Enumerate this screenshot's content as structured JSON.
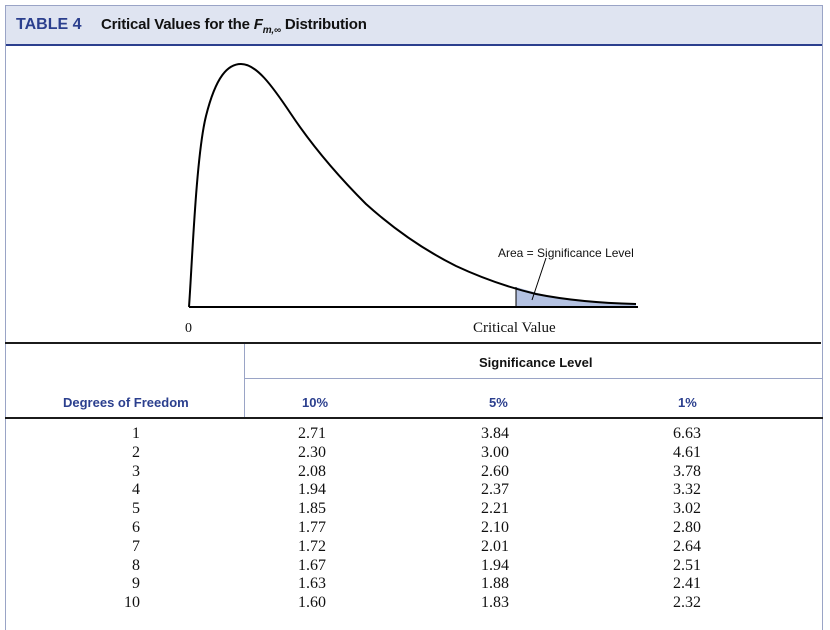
{
  "header": {
    "table_label": "TABLE 4",
    "title_prefix": "Critical Values for the ",
    "title_symbol": "F",
    "title_subscript": "m,∞",
    "title_suffix": " Distribution"
  },
  "figure": {
    "zero_label": "0",
    "critical_value_label": "Critical Value",
    "area_label": "Area = Significance Level"
  },
  "table": {
    "row_header": "Degrees of Freedom",
    "group_header": "Significance Level",
    "columns": [
      "10%",
      "5%",
      "1%"
    ],
    "rows": [
      {
        "df": "1",
        "v10": "2.71",
        "v5": "3.84",
        "v1": "6.63"
      },
      {
        "df": "2",
        "v10": "2.30",
        "v5": "3.00",
        "v1": "4.61"
      },
      {
        "df": "3",
        "v10": "2.08",
        "v5": "2.60",
        "v1": "3.78"
      },
      {
        "df": "4",
        "v10": "1.94",
        "v5": "2.37",
        "v1": "3.32"
      },
      {
        "df": "5",
        "v10": "1.85",
        "v5": "2.21",
        "v1": "3.02"
      },
      {
        "df": "6",
        "v10": "1.77",
        "v5": "2.10",
        "v1": "2.80"
      },
      {
        "df": "7",
        "v10": "1.72",
        "v5": "2.01",
        "v1": "2.64"
      },
      {
        "df": "8",
        "v10": "1.67",
        "v5": "1.94",
        "v1": "2.51"
      },
      {
        "df": "9",
        "v10": "1.63",
        "v5": "1.88",
        "v1": "2.41"
      },
      {
        "df": "10",
        "v10": "1.60",
        "v5": "1.83",
        "v1": "2.32"
      }
    ]
  },
  "colors": {
    "accent": "#2b3f8e",
    "title_bg": "#dfe4f1",
    "shade": "#b4c2e2"
  }
}
